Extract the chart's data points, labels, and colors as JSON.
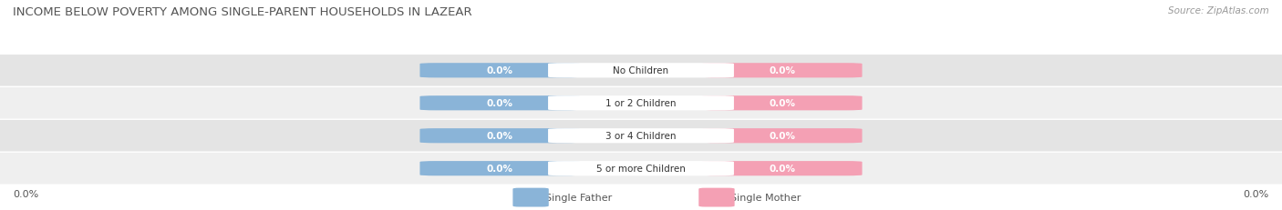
{
  "title": "INCOME BELOW POVERTY AMONG SINGLE-PARENT HOUSEHOLDS IN LAZEAR",
  "source": "Source: ZipAtlas.com",
  "categories": [
    "No Children",
    "1 or 2 Children",
    "3 or 4 Children",
    "5 or more Children"
  ],
  "single_father_values": [
    0.0,
    0.0,
    0.0,
    0.0
  ],
  "single_mother_values": [
    0.0,
    0.0,
    0.0,
    0.0
  ],
  "father_color": "#8ab4d8",
  "mother_color": "#f4a0b4",
  "father_label": "Single Father",
  "mother_label": "Single Mother",
  "row_bg_colors": [
    "#efefef",
    "#e4e4e4"
  ],
  "axis_label_left": "0.0%",
  "axis_label_right": "0.0%",
  "title_color": "#555555",
  "source_color": "#999999",
  "label_color": "#555555",
  "center_label_color": "#333333",
  "background_color": "#ffffff"
}
